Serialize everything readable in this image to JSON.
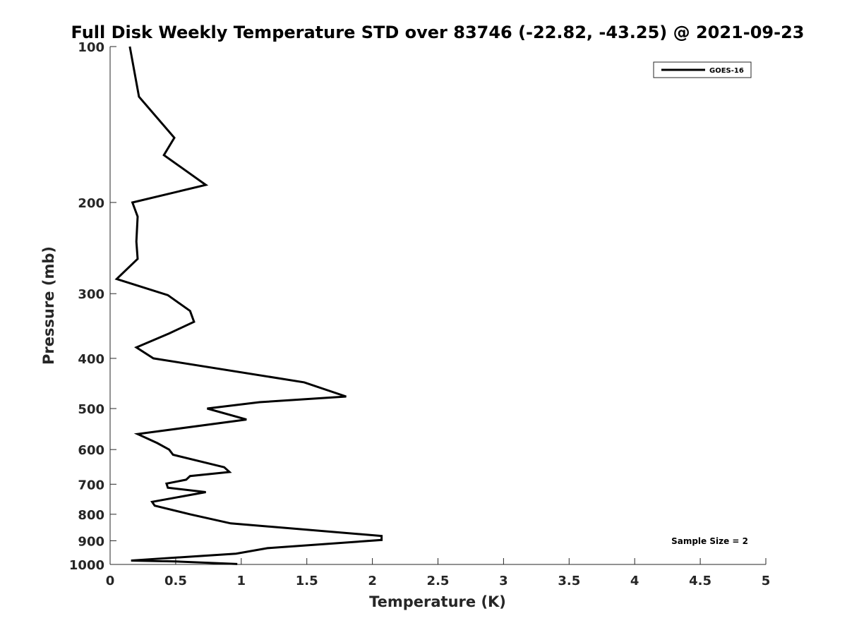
{
  "chart_data": {
    "type": "line",
    "title": "Full Disk Weekly Temperature STD over 83746 (-22.82, -43.25) @ 2021-09-23",
    "xlabel": "Temperature (K)",
    "ylabel": "Pressure (mb)",
    "xlim": [
      0,
      5
    ],
    "ylim": [
      100,
      1000
    ],
    "y_scale": "log",
    "y_reversed": true,
    "x_ticks": [
      0,
      0.5,
      1,
      1.5,
      2,
      2.5,
      3,
      3.5,
      4,
      4.5,
      5
    ],
    "x_tick_labels": [
      "0",
      "0.5",
      "1",
      "1.5",
      "2",
      "2.5",
      "3",
      "3.5",
      "4",
      "4.5",
      "5"
    ],
    "y_ticks": [
      100,
      200,
      300,
      400,
      500,
      600,
      700,
      800,
      900,
      1000
    ],
    "y_tick_labels": [
      "100",
      "200",
      "300",
      "400",
      "500",
      "600",
      "700",
      "800",
      "900",
      "1000"
    ],
    "grid": false,
    "legend_position": "top-right",
    "series": [
      {
        "name": "GOES-16",
        "color": "#000000",
        "x": [
          0.15,
          0.22,
          0.49,
          0.41,
          0.73,
          0.17,
          0.21,
          0.2,
          0.21,
          0.05,
          0.44,
          0.61,
          0.64,
          0.45,
          0.2,
          0.33,
          1.48,
          1.8,
          1.14,
          0.74,
          1.04,
          0.21,
          0.36,
          0.45,
          0.48,
          0.87,
          0.91,
          0.61,
          0.58,
          0.43,
          0.44,
          0.73,
          0.32,
          0.34,
          0.61,
          0.92,
          2.07,
          2.07,
          1.2,
          0.96,
          0.16,
          0.5,
          0.97
        ],
        "y": [
          100,
          125,
          150,
          162,
          185,
          200,
          213,
          238,
          257,
          281,
          302,
          324,
          340,
          358,
          381,
          400,
          445,
          474,
          486,
          500,
          525,
          560,
          583,
          600,
          614,
          649,
          663,
          675,
          686,
          698,
          711,
          725,
          757,
          770,
          800,
          833,
          881,
          897,
          930,
          953,
          983,
          987,
          998
        ]
      }
    ],
    "legend_entries": [
      "GOES-16"
    ],
    "annotations": [
      {
        "text": "Sample Size = 2",
        "position": "bottom-right"
      }
    ]
  }
}
